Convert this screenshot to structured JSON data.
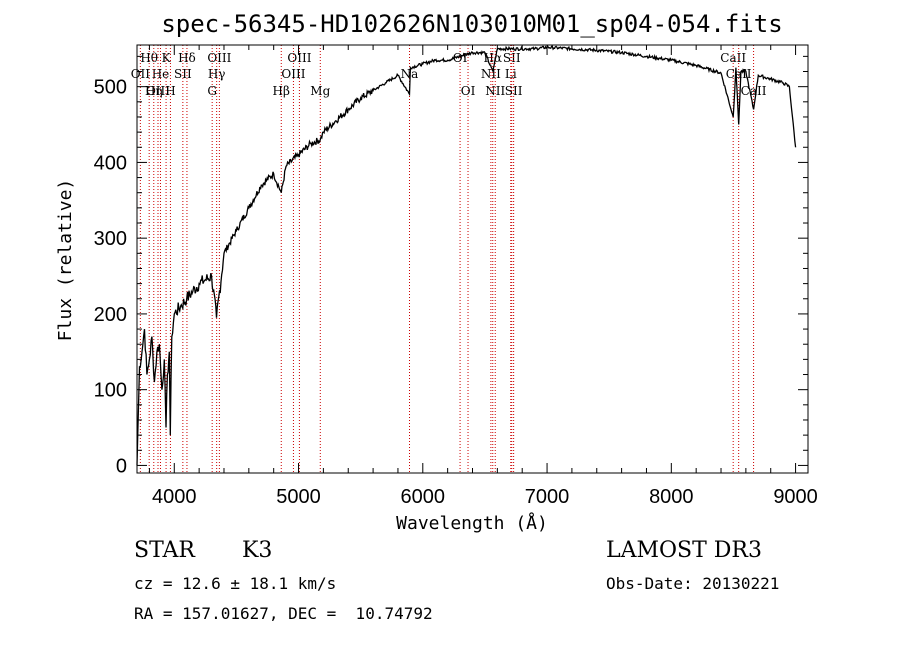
{
  "chart_data": {
    "type": "line",
    "title": "spec-56345-HD102626N103010M01_sp04-054.fits",
    "xlabel": "Wavelength (Å)",
    "ylabel": "Flux (relative)",
    "xlim": [
      3700,
      9100
    ],
    "ylim": [
      -10,
      555
    ],
    "xticks": [
      4000,
      5000,
      6000,
      7000,
      8000,
      9000
    ],
    "yticks": [
      0,
      100,
      200,
      300,
      400,
      500
    ],
    "series": [
      {
        "name": "spectrum",
        "x": [
          3700,
          3720,
          3740,
          3760,
          3780,
          3800,
          3820,
          3840,
          3860,
          3880,
          3900,
          3920,
          3933,
          3945,
          3960,
          3968,
          3980,
          4000,
          4050,
          4100,
          4150,
          4200,
          4250,
          4300,
          4340,
          4400,
          4500,
          4600,
          4700,
          4800,
          4861,
          4900,
          5000,
          5100,
          5175,
          5200,
          5300,
          5400,
          5500,
          5600,
          5700,
          5800,
          5893,
          5900,
          6000,
          6100,
          6200,
          6300,
          6400,
          6500,
          6563,
          6600,
          6700,
          6800,
          6900,
          7000,
          7200,
          7400,
          7600,
          7800,
          8000,
          8200,
          8400,
          8498,
          8520,
          8542,
          8560,
          8600,
          8662,
          8700,
          8800,
          8900,
          8950,
          9000
        ],
        "y": [
          0,
          130,
          150,
          180,
          120,
          140,
          170,
          110,
          150,
          160,
          100,
          140,
          50,
          120,
          150,
          40,
          170,
          200,
          210,
          220,
          230,
          240,
          245,
          250,
          195,
          280,
          310,
          340,
          370,
          385,
          360,
          395,
          410,
          425,
          430,
          440,
          455,
          470,
          485,
          495,
          505,
          515,
          490,
          525,
          530,
          535,
          535,
          540,
          545,
          545,
          520,
          550,
          550,
          550,
          550,
          552,
          550,
          548,
          545,
          540,
          535,
          528,
          518,
          460,
          525,
          450,
          520,
          520,
          470,
          515,
          510,
          505,
          500,
          420
        ]
      }
    ],
    "lines": [
      {
        "label": "Hθ",
        "wave": 3798,
        "row": 1
      },
      {
        "label": "OII",
        "wave": 3727,
        "row": 2
      },
      {
        "label": "OIII",
        "wave": 3869,
        "row": 3
      },
      {
        "label": "He",
        "wave": 3889,
        "row": 2
      },
      {
        "label": "Hη",
        "wave": 3835,
        "row": 3
      },
      {
        "label": "K",
        "wave": 3934,
        "row": 1
      },
      {
        "label": "SII",
        "wave": 4069,
        "row": 2
      },
      {
        "label": "H",
        "wave": 3969,
        "row": 3
      },
      {
        "label": "Hδ",
        "wave": 4102,
        "row": 1
      },
      {
        "label": "OIII",
        "wave": 4363,
        "row": 1
      },
      {
        "label": "Hγ",
        "wave": 4341,
        "row": 2
      },
      {
        "label": "G",
        "wave": 4305,
        "row": 3
      },
      {
        "label": "Hβ",
        "wave": 4861,
        "row": 3
      },
      {
        "label": "OIII",
        "wave": 5007,
        "row": 1
      },
      {
        "label": "OIII",
        "wave": 4959,
        "row": 2
      },
      {
        "label": "Mg",
        "wave": 5175,
        "row": 3
      },
      {
        "label": "Na",
        "wave": 5893,
        "row": 2
      },
      {
        "label": "OI",
        "wave": 6300,
        "row": 1
      },
      {
        "label": "OI",
        "wave": 6364,
        "row": 3
      },
      {
        "label": "Hα",
        "wave": 6563,
        "row": 1
      },
      {
        "label": "NII",
        "wave": 6548,
        "row": 2
      },
      {
        "label": "NII",
        "wave": 6583,
        "row": 3
      },
      {
        "label": "SII",
        "wave": 6716,
        "row": 1
      },
      {
        "label": "Li",
        "wave": 6708,
        "row": 2
      },
      {
        "label": "SII",
        "wave": 6731,
        "row": 3
      },
      {
        "label": "CaII",
        "wave": 8498,
        "row": 1
      },
      {
        "label": "CaII",
        "wave": 8542,
        "row": 2
      },
      {
        "label": "CaII",
        "wave": 8662,
        "row": 3
      }
    ]
  },
  "info": {
    "class_label": "STAR",
    "subclass": "K3",
    "survey": "LAMOST DR3",
    "cz": "cz = 12.6 ± 18.1 km/s",
    "obs_date": "Obs-Date: 20130221",
    "coords": "RA = 157.01627, DEC =  10.74792"
  },
  "colors": {
    "spectrum": "#000000",
    "line_marker": "#cc0000",
    "axis": "#000000"
  }
}
